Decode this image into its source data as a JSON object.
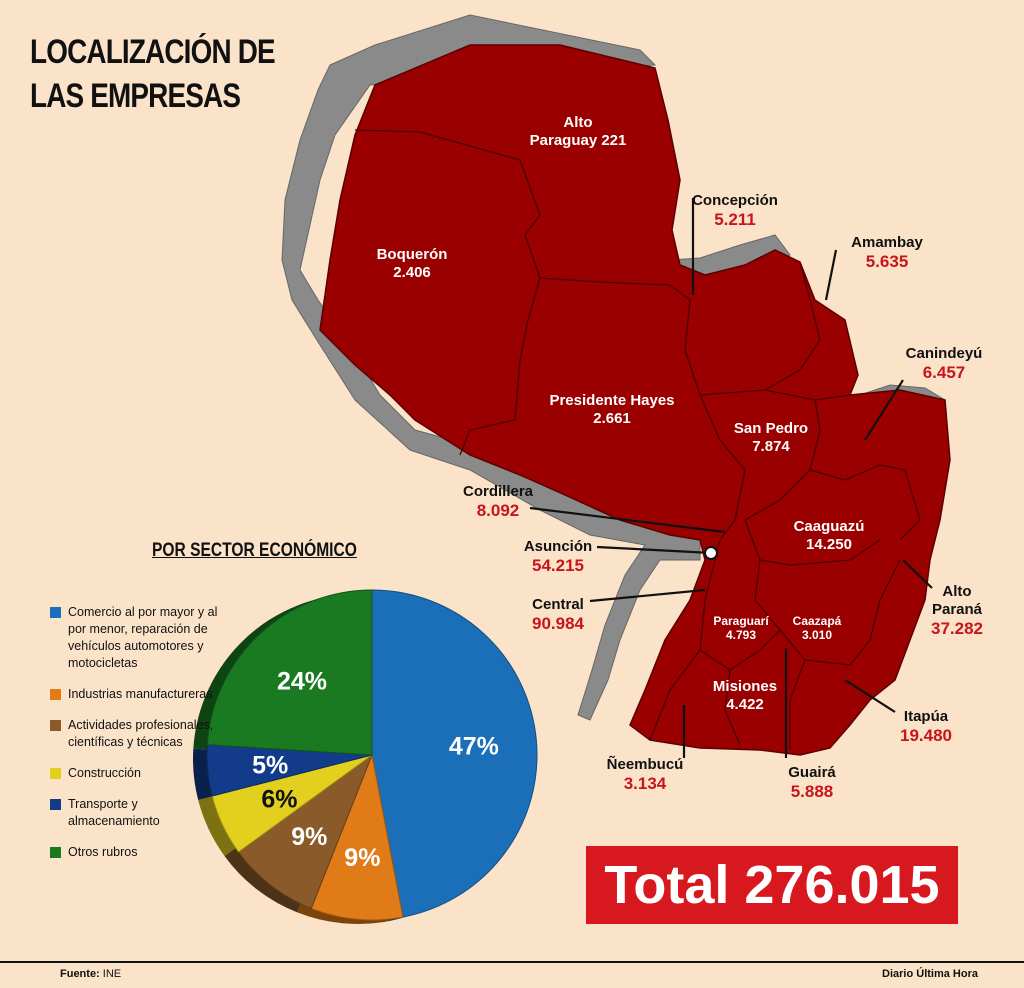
{
  "title": {
    "line1": "LOCALIZACIÓN DE",
    "line2": "LAS EMPRESAS"
  },
  "departments": [
    {
      "id": "alto-paraguay",
      "name": "Alto\nParaguay 221",
      "value": ""
    },
    {
      "id": "boqueron",
      "name": "Boquerón",
      "value": "2.406"
    },
    {
      "id": "presidente-hayes",
      "name": "Presidente Hayes",
      "value": "2.661"
    },
    {
      "id": "concepcion",
      "name": "Concepción",
      "value": "5.211"
    },
    {
      "id": "amambay",
      "name": "Amambay",
      "value": "5.635"
    },
    {
      "id": "canindeyu",
      "name": "Canindeyú",
      "value": "6.457"
    },
    {
      "id": "san-pedro",
      "name": "San Pedro",
      "value": "7.874"
    },
    {
      "id": "cordillera",
      "name": "Cordillera",
      "value": "8.092"
    },
    {
      "id": "asuncion",
      "name": "Asunción",
      "value": "54.215"
    },
    {
      "id": "caaguazu",
      "name": "Caaguazú",
      "value": "14.250"
    },
    {
      "id": "central",
      "name": "Central",
      "value": "90.984"
    },
    {
      "id": "paraguari",
      "name": "Paraguarí",
      "value": "4.793"
    },
    {
      "id": "caazapa",
      "name": "Caazapá",
      "value": "3.010"
    },
    {
      "id": "alto-parana",
      "name": "Alto\nParaná",
      "value": "37.282"
    },
    {
      "id": "misiones",
      "name": "Misiones",
      "value": "4.422"
    },
    {
      "id": "itapua",
      "name": "Itapúa",
      "value": "19.480"
    },
    {
      "id": "neembucu",
      "name": "Ñeembucú",
      "value": "3.134"
    },
    {
      "id": "guaira",
      "name": "Guairá",
      "value": "5.888"
    }
  ],
  "pie": {
    "title": "POR SECTOR ECONÓMICO",
    "chart_data": {
      "type": "pie",
      "categories": [
        "Comercio al por mayor y al por menor, reparación de vehículos automotores y motocicletas",
        "Industrias manufactureras",
        "Actividades profesionales, científicas y técnicas",
        "Construcción",
        "Transporte y almacenamiento",
        "Otros rubros"
      ],
      "values": [
        47,
        9,
        9,
        6,
        5,
        24
      ],
      "labels": [
        "47%",
        "9%",
        "9%",
        "6%",
        "5%",
        "24%"
      ],
      "colors": [
        "#1a6fb8",
        "#e07b18",
        "#8a5a2a",
        "#e3cf1e",
        "#123c8a",
        "#1a7a22"
      ]
    },
    "legend": [
      {
        "label": "Comercio al por mayor y al por menor, reparación de vehículos automotores y motocicletas",
        "color": "#1a6fb8"
      },
      {
        "label": "Industrias manufactureras",
        "color": "#e07b18"
      },
      {
        "label": "Actividades profesionales, científicas y técnicas",
        "color": "#8a5a2a"
      },
      {
        "label": "Construcción",
        "color": "#e3cf1e"
      },
      {
        "label": "Transporte y almacenamiento",
        "color": "#123c8a"
      },
      {
        "label": "Otros rubros",
        "color": "#1a7a22"
      }
    ]
  },
  "total": "Total 276.015",
  "footer": {
    "source_label": "Fuente:",
    "source": "INE",
    "credit": "Diario Última Hora"
  }
}
